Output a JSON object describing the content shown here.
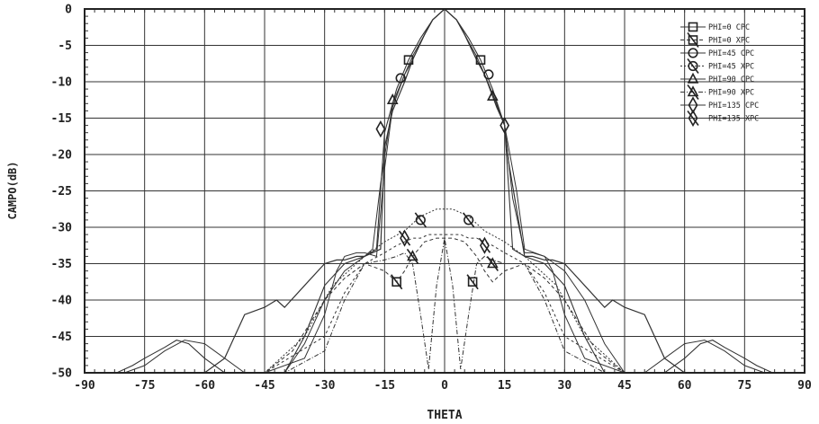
{
  "chart_data": {
    "type": "line",
    "xlabel": "THETA",
    "ylabel": "CAMPO(dB)",
    "xlim": [
      -90,
      90
    ],
    "ylim": [
      -50,
      0
    ],
    "x_ticks": [
      "-90",
      "-75",
      "-60",
      "-45",
      "-30",
      "-15",
      "0",
      "15",
      "30",
      "45",
      "60",
      "75",
      "90"
    ],
    "y_ticks": [
      "0",
      "-5",
      "-10",
      "-15",
      "-20",
      "-25",
      "-30",
      "-35",
      "-40",
      "-45",
      "-50"
    ],
    "grid": true,
    "legend_position": "top-right",
    "series": [
      {
        "name": "PHI=0  CPC",
        "marker": "square",
        "x": [
          -90,
          -60,
          -45,
          -35,
          -30,
          -27,
          -25,
          -22,
          -20,
          -17,
          -15,
          -13,
          -10,
          -8,
          -5,
          -3,
          0,
          3,
          5,
          8,
          10,
          13,
          15,
          17,
          20,
          22,
          25,
          27,
          30,
          35,
          45,
          60,
          90
        ],
        "y": [
          -50,
          -50,
          -50,
          -48,
          -42,
          -36,
          -34,
          -33.5,
          -33.5,
          -34,
          -22,
          -13.5,
          -9,
          -7,
          -3.5,
          -1.5,
          0,
          -1.5,
          -3.5,
          -7,
          -9,
          -13.5,
          -16,
          -26,
          -33.5,
          -33.5,
          -34,
          -36,
          -42,
          -48,
          -50,
          -50,
          -50
        ]
      },
      {
        "name": "PHI=0  XPC",
        "marker": "square-slash",
        "x": [
          -90,
          -60,
          -45,
          -38,
          -30,
          -25,
          -20,
          -15,
          -12,
          -10,
          -8,
          -5,
          -2,
          0,
          2,
          5,
          8,
          10,
          12,
          15,
          20,
          25,
          30,
          38,
          45,
          60,
          90
        ],
        "y": [
          -50,
          -50,
          -50,
          -47,
          -40,
          -37,
          -35,
          -36,
          -37.5,
          -36,
          -34,
          -32,
          -31.5,
          -31.5,
          -31.5,
          -32,
          -34,
          -36,
          -37.5,
          -36,
          -35,
          -37,
          -40,
          -47,
          -50,
          -50,
          -50
        ]
      },
      {
        "name": "PHI=45  CPC",
        "marker": "circle",
        "x": [
          -90,
          -70,
          -60,
          -55,
          -50,
          -45,
          -42,
          -40,
          -35,
          -30,
          -27,
          -25,
          -22,
          -20,
          -16,
          -15,
          -13,
          -10,
          -8,
          -5,
          -3,
          0,
          3,
          5,
          8,
          10,
          13,
          15,
          16,
          20,
          22,
          25,
          27,
          30,
          35,
          40,
          42,
          45,
          50,
          55,
          60,
          70,
          90
        ],
        "y": [
          -50,
          -50,
          -50,
          -48,
          -42,
          -41,
          -40,
          -41,
          -38,
          -35,
          -34.5,
          -34.5,
          -34,
          -34,
          -33,
          -19,
          -14,
          -10,
          -7,
          -3.5,
          -1.5,
          0,
          -1.5,
          -3.5,
          -7,
          -9,
          -13,
          -16,
          -21,
          -34,
          -34,
          -34.5,
          -34.5,
          -35,
          -38,
          -41,
          -40,
          -41,
          -42,
          -48,
          -50,
          -50,
          -50
        ]
      },
      {
        "name": "PHI=45  XPC",
        "marker": "circle-slash",
        "x": [
          -90,
          -60,
          -45,
          -35,
          -28,
          -20,
          -15,
          -10,
          -8,
          -6,
          -4,
          -2,
          0,
          2,
          4,
          6,
          8,
          10,
          15,
          20,
          28,
          35,
          45,
          60,
          90
        ],
        "y": [
          -50,
          -50,
          -50,
          -45,
          -38,
          -34,
          -32,
          -30.5,
          -29.5,
          -28.5,
          -28,
          -27.5,
          -27.5,
          -27.5,
          -28,
          -28.5,
          -29.5,
          -30.5,
          -32,
          -34,
          -38,
          -45,
          -50,
          -50,
          -50
        ]
      },
      {
        "name": "PHI=90  CPC",
        "marker": "triangle",
        "x": [
          -90,
          -80,
          -75,
          -70,
          -65,
          -60,
          -55,
          -50,
          -45,
          -40,
          -35,
          -30,
          -25,
          -20,
          -18,
          -16,
          -13,
          -10,
          -8,
          -5,
          -3,
          0,
          3,
          5,
          8,
          10,
          12,
          15,
          18,
          20,
          25,
          30,
          35,
          40,
          45,
          50,
          55,
          60,
          65,
          70,
          75,
          80,
          90
        ],
        "y": [
          -50,
          -50,
          -49,
          -47,
          -45.5,
          -46,
          -48,
          -50,
          -50,
          -50,
          -46,
          -40,
          -36,
          -34,
          -33,
          -24,
          -13,
          -9,
          -6.5,
          -3.5,
          -1.5,
          0,
          -1.5,
          -3.5,
          -6.5,
          -9,
          -12,
          -16,
          -25,
          -33,
          -34,
          -36,
          -40,
          -46,
          -50,
          -50,
          -48,
          -46,
          -45.5,
          -47,
          -49,
          -50,
          -50
        ]
      },
      {
        "name": "PHI=90  XPC",
        "marker": "triangle-slash",
        "x": [
          -90,
          -50,
          -40,
          -30,
          -25,
          -20,
          -15,
          -12,
          -10,
          -8,
          -6,
          -4,
          -2,
          0,
          2,
          4,
          6,
          8,
          10,
          12,
          15,
          20,
          25,
          30,
          40,
          50,
          90
        ],
        "y": [
          -50,
          -50,
          -50,
          -47,
          -40,
          -35,
          -34.5,
          -34,
          -33.5,
          -35,
          -42,
          -49.5,
          -38,
          -31.5,
          -38,
          -49.5,
          -42,
          -35,
          -34,
          -34.5,
          -35,
          -35,
          -40,
          -47,
          -50,
          -50,
          -50
        ]
      },
      {
        "name": "PHI=135  CPC",
        "marker": "diamond",
        "x": [
          -90,
          -82,
          -78,
          -75,
          -70,
          -67,
          -64,
          -60,
          -55,
          -45,
          -40,
          -35,
          -30,
          -25,
          -20,
          -17,
          -15,
          -12,
          -9,
          -6,
          -3,
          0,
          3,
          6,
          9,
          12,
          15,
          17,
          20,
          25,
          30,
          35,
          40,
          45,
          55,
          60,
          64,
          67,
          70,
          75,
          78,
          82,
          90
        ],
        "y": [
          -50,
          -50,
          -49,
          -48,
          -46.5,
          -45.5,
          -46,
          -48,
          -50,
          -50,
          -50,
          -45,
          -38,
          -35,
          -34,
          -33,
          -17,
          -11,
          -7,
          -4,
          -1.5,
          0,
          -1.5,
          -4,
          -7,
          -11,
          -16,
          -33,
          -34,
          -35,
          -38,
          -45,
          -50,
          -50,
          -50,
          -48,
          -46,
          -45.5,
          -46.5,
          -48,
          -49,
          -50,
          -50
        ]
      },
      {
        "name": "PHI=135  XPC",
        "marker": "diamond-slash",
        "x": [
          -90,
          -55,
          -45,
          -30,
          -25,
          -20,
          -15,
          -12,
          -10,
          -8,
          -6,
          -4,
          -2,
          0,
          2,
          4,
          6,
          8,
          10,
          12,
          15,
          20,
          25,
          30,
          45,
          55,
          90
        ],
        "y": [
          -50,
          -50,
          -50,
          -45,
          -39,
          -35,
          -33.5,
          -32.5,
          -32,
          -31.5,
          -31.5,
          -31,
          -31,
          -31,
          -31,
          -31,
          -31.5,
          -31.5,
          -32,
          -32.5,
          -33.5,
          -35,
          -39,
          -45,
          -50,
          -50,
          -50
        ]
      }
    ],
    "markers": [
      {
        "series": 0,
        "x": -9,
        "y": -7
      },
      {
        "series": 0,
        "x": 9,
        "y": -7
      },
      {
        "series": 1,
        "x": -12,
        "y": -37.5
      },
      {
        "series": 1,
        "x": 7,
        "y": -37.5
      },
      {
        "series": 2,
        "x": -11,
        "y": -9.5
      },
      {
        "series": 2,
        "x": 11,
        "y": -9
      },
      {
        "series": 3,
        "x": -6,
        "y": -29
      },
      {
        "series": 3,
        "x": 6,
        "y": -29
      },
      {
        "series": 4,
        "x": -13,
        "y": -12.5
      },
      {
        "series": 4,
        "x": 12,
        "y": -12
      },
      {
        "series": 5,
        "x": -8,
        "y": -34
      },
      {
        "series": 5,
        "x": 12,
        "y": -35
      },
      {
        "series": 6,
        "x": -16,
        "y": -16.5
      },
      {
        "series": 6,
        "x": 15,
        "y": -16
      },
      {
        "series": 7,
        "x": -10,
        "y": -31.5
      },
      {
        "series": 7,
        "x": 10,
        "y": -32.5
      }
    ]
  }
}
